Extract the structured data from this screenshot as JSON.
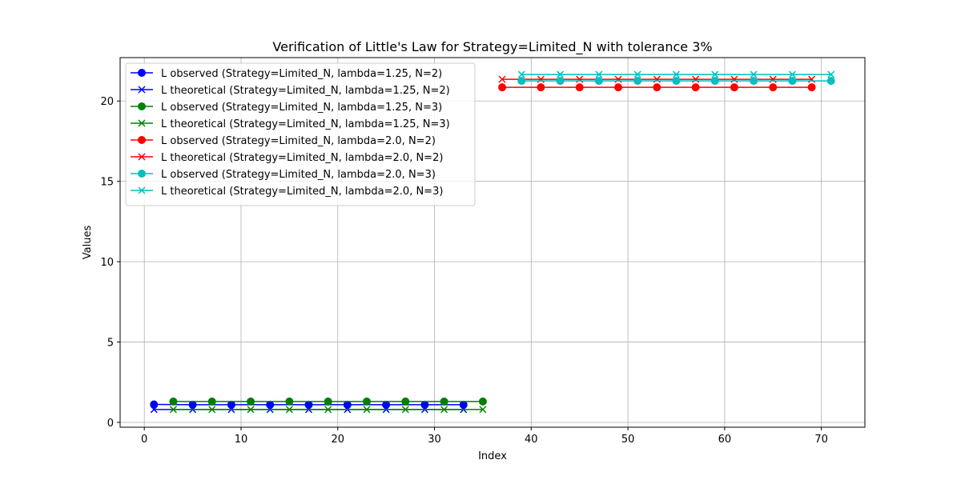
{
  "chart_data": {
    "type": "line",
    "title": "Verification of Little's Law for Strategy=Limited_N with tolerance 3%",
    "xlabel": "Index",
    "ylabel": "Values",
    "xlim": [
      -2.5,
      74.5
    ],
    "ylim": [
      -0.3,
      22.7
    ],
    "xticks": [
      0,
      10,
      20,
      30,
      40,
      50,
      60,
      70
    ],
    "yticks": [
      0,
      5,
      10,
      15,
      20
    ],
    "grid": true,
    "legend_position": "upper-left",
    "series": [
      {
        "name": "L observed (Strategy=Limited_N, lambda=1.25, N=2)",
        "color": "#0000ff",
        "marker": "circle",
        "x": [
          1,
          5,
          9,
          13,
          17,
          21,
          25,
          29,
          33
        ],
        "y": [
          1.12,
          1.1,
          1.1,
          1.1,
          1.1,
          1.1,
          1.1,
          1.1,
          1.1
        ]
      },
      {
        "name": "L theoretical (Strategy=Limited_N, lambda=1.25, N=2)",
        "color": "#0000ff",
        "marker": "x",
        "x": [
          1,
          5,
          9,
          13,
          17,
          21,
          25,
          29,
          33
        ],
        "y": [
          0.8,
          0.8,
          0.8,
          0.8,
          0.8,
          0.8,
          0.8,
          0.8,
          0.8
        ]
      },
      {
        "name": "L observed (Strategy=Limited_N, lambda=1.25, N=3)",
        "color": "#008000",
        "marker": "circle",
        "x": [
          3,
          7,
          11,
          15,
          19,
          23,
          27,
          31,
          35
        ],
        "y": [
          1.3,
          1.3,
          1.3,
          1.3,
          1.3,
          1.3,
          1.3,
          1.3,
          1.3
        ]
      },
      {
        "name": "L theoretical (Strategy=Limited_N, lambda=1.25, N=3)",
        "color": "#008000",
        "marker": "x",
        "x": [
          3,
          7,
          11,
          15,
          19,
          23,
          27,
          31,
          35
        ],
        "y": [
          0.8,
          0.8,
          0.8,
          0.8,
          0.8,
          0.8,
          0.8,
          0.8,
          0.8
        ]
      },
      {
        "name": "L observed (Strategy=Limited_N, lambda=2.0, N=2)",
        "color": "#ff0000",
        "marker": "circle",
        "x": [
          37,
          41,
          45,
          49,
          53,
          57,
          61,
          65,
          69
        ],
        "y": [
          20.85,
          20.85,
          20.85,
          20.85,
          20.85,
          20.85,
          20.85,
          20.85,
          20.85
        ]
      },
      {
        "name": "L theoretical (Strategy=Limited_N, lambda=2.0, N=2)",
        "color": "#ff0000",
        "marker": "x",
        "x": [
          37,
          41,
          45,
          49,
          53,
          57,
          61,
          65,
          69
        ],
        "y": [
          21.35,
          21.35,
          21.35,
          21.35,
          21.35,
          21.35,
          21.35,
          21.35,
          21.35
        ]
      },
      {
        "name": "L observed (Strategy=Limited_N, lambda=2.0, N=3)",
        "color": "#00bfbf",
        "marker": "circle",
        "x": [
          39,
          43,
          47,
          51,
          55,
          59,
          63,
          67,
          71
        ],
        "y": [
          21.25,
          21.25,
          21.25,
          21.25,
          21.25,
          21.25,
          21.25,
          21.25,
          21.25
        ]
      },
      {
        "name": "L theoretical (Strategy=Limited_N, lambda=2.0, N=3)",
        "color": "#00bfbf",
        "marker": "x",
        "x": [
          39,
          43,
          47,
          51,
          55,
          59,
          63,
          67,
          71
        ],
        "y": [
          21.65,
          21.65,
          21.65,
          21.65,
          21.65,
          21.65,
          21.65,
          21.65,
          21.65
        ]
      }
    ]
  }
}
